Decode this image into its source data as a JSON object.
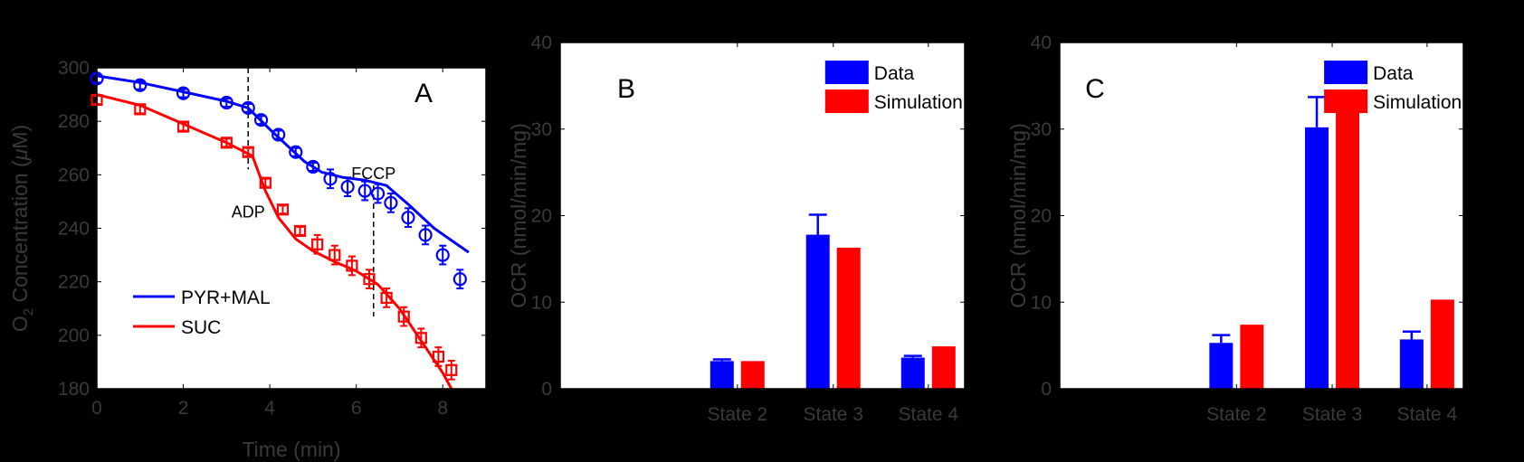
{
  "colors": {
    "blue": "#0000ff",
    "red": "#ff0000",
    "axis_text": "#3a3a3a",
    "background": "#000000"
  },
  "chart_data": [
    {
      "type": "line",
      "panel_label": "A",
      "xlabel": "Time (min)",
      "ylabel": "O2 Concentration (μM)",
      "ylabel_parts": {
        "pre": "O",
        "sub": "2",
        "mid": " Concentration (",
        "ital": "μ",
        "post": "M)"
      },
      "xlim": [
        0,
        9
      ],
      "ylim": [
        180,
        300
      ],
      "xticks": [
        0,
        2,
        4,
        6,
        8
      ],
      "yticks": [
        180,
        200,
        220,
        240,
        260,
        280,
        300
      ],
      "legend": {
        "position": "bottom-left",
        "entries": [
          "PYR+MAL",
          "SUC"
        ]
      },
      "annotations": [
        {
          "text": "ADP",
          "x": 3.5
        },
        {
          "text": "FCCP",
          "x": 6.4
        }
      ],
      "series": [
        {
          "name": "PYR+MAL",
          "color": "blue",
          "sim": {
            "x": [
              0,
              1,
              2,
              3,
              3.5,
              4.0,
              4.4,
              4.8,
              5.2,
              5.7,
              6.2,
              6.7,
              7.2,
              7.8,
              8.6
            ],
            "y": [
              297,
              294.5,
              291,
              287.5,
              285,
              277,
              271,
              265,
              261,
              259,
              258,
              256,
              249,
              240,
              231
            ]
          },
          "data": {
            "x": [
              0,
              1,
              2,
              3,
              3.5,
              3.8,
              4.2,
              4.6,
              5.0,
              5.4,
              5.8,
              6.2,
              6.5,
              6.8,
              7.2,
              7.6,
              8.0,
              8.4
            ],
            "y": [
              296,
              293.5,
              290.5,
              287,
              285,
              280.5,
              275,
              268.5,
              263,
              258.5,
              255.5,
              254,
              253,
              249.5,
              244,
              237.5,
              230,
              221
            ]
          }
        },
        {
          "name": "SUC",
          "color": "red",
          "sim": {
            "x": [
              0,
              1,
              2,
              3,
              3.6,
              3.9,
              4.2,
              4.6,
              5.0,
              5.5,
              6.0,
              6.5,
              7.0,
              7.5,
              8.0,
              8.2
            ],
            "y": [
              290,
              286,
              279,
              272,
              267,
              254,
              244,
              236,
              231.5,
              227.5,
              224,
              219,
              210,
              198,
              186,
              180
            ]
          },
          "data": {
            "x": [
              0,
              1,
              2,
              3,
              3.5,
              3.9,
              4.3,
              4.7,
              5.1,
              5.5,
              5.9,
              6.3,
              6.7,
              7.1,
              7.5,
              7.9,
              8.2
            ],
            "y": [
              288,
              284.5,
              278,
              272,
              268.5,
              257,
              247,
              239,
              234,
              230,
              226,
              221,
              214,
              207,
              199,
              192,
              187
            ]
          }
        }
      ]
    },
    {
      "type": "bar",
      "panel_label": "B",
      "ylabel": "OCR (nmol/min/mg)",
      "categories": [
        "State 2",
        "State 3",
        "State 4"
      ],
      "ylim": [
        0,
        40
      ],
      "yticks": [
        0,
        10,
        20,
        30,
        40
      ],
      "legend": {
        "position": "top-right",
        "entries": [
          "Data",
          "Simulation"
        ]
      },
      "series": [
        {
          "name": "Data",
          "color": "blue",
          "values": [
            3.2,
            17.8,
            3.6
          ],
          "error": [
            0.2,
            2.3,
            0.2
          ]
        },
        {
          "name": "Simulation",
          "color": "red",
          "values": [
            3.2,
            16.3,
            4.9
          ]
        }
      ]
    },
    {
      "type": "bar",
      "panel_label": "C",
      "ylabel": "OCR (nmol/min/mg)",
      "categories": [
        "State 2",
        "State 3",
        "State 4"
      ],
      "ylim": [
        0,
        40
      ],
      "yticks": [
        0,
        10,
        20,
        30,
        40
      ],
      "legend": {
        "position": "top-right",
        "entries": [
          "Data",
          "Simulation"
        ]
      },
      "series": [
        {
          "name": "Data",
          "color": "blue",
          "values": [
            5.3,
            30.2,
            5.7
          ],
          "error": [
            0.9,
            3.5,
            0.9
          ]
        },
        {
          "name": "Simulation",
          "color": "red",
          "values": [
            7.4,
            33.8,
            10.3
          ]
        }
      ]
    }
  ]
}
